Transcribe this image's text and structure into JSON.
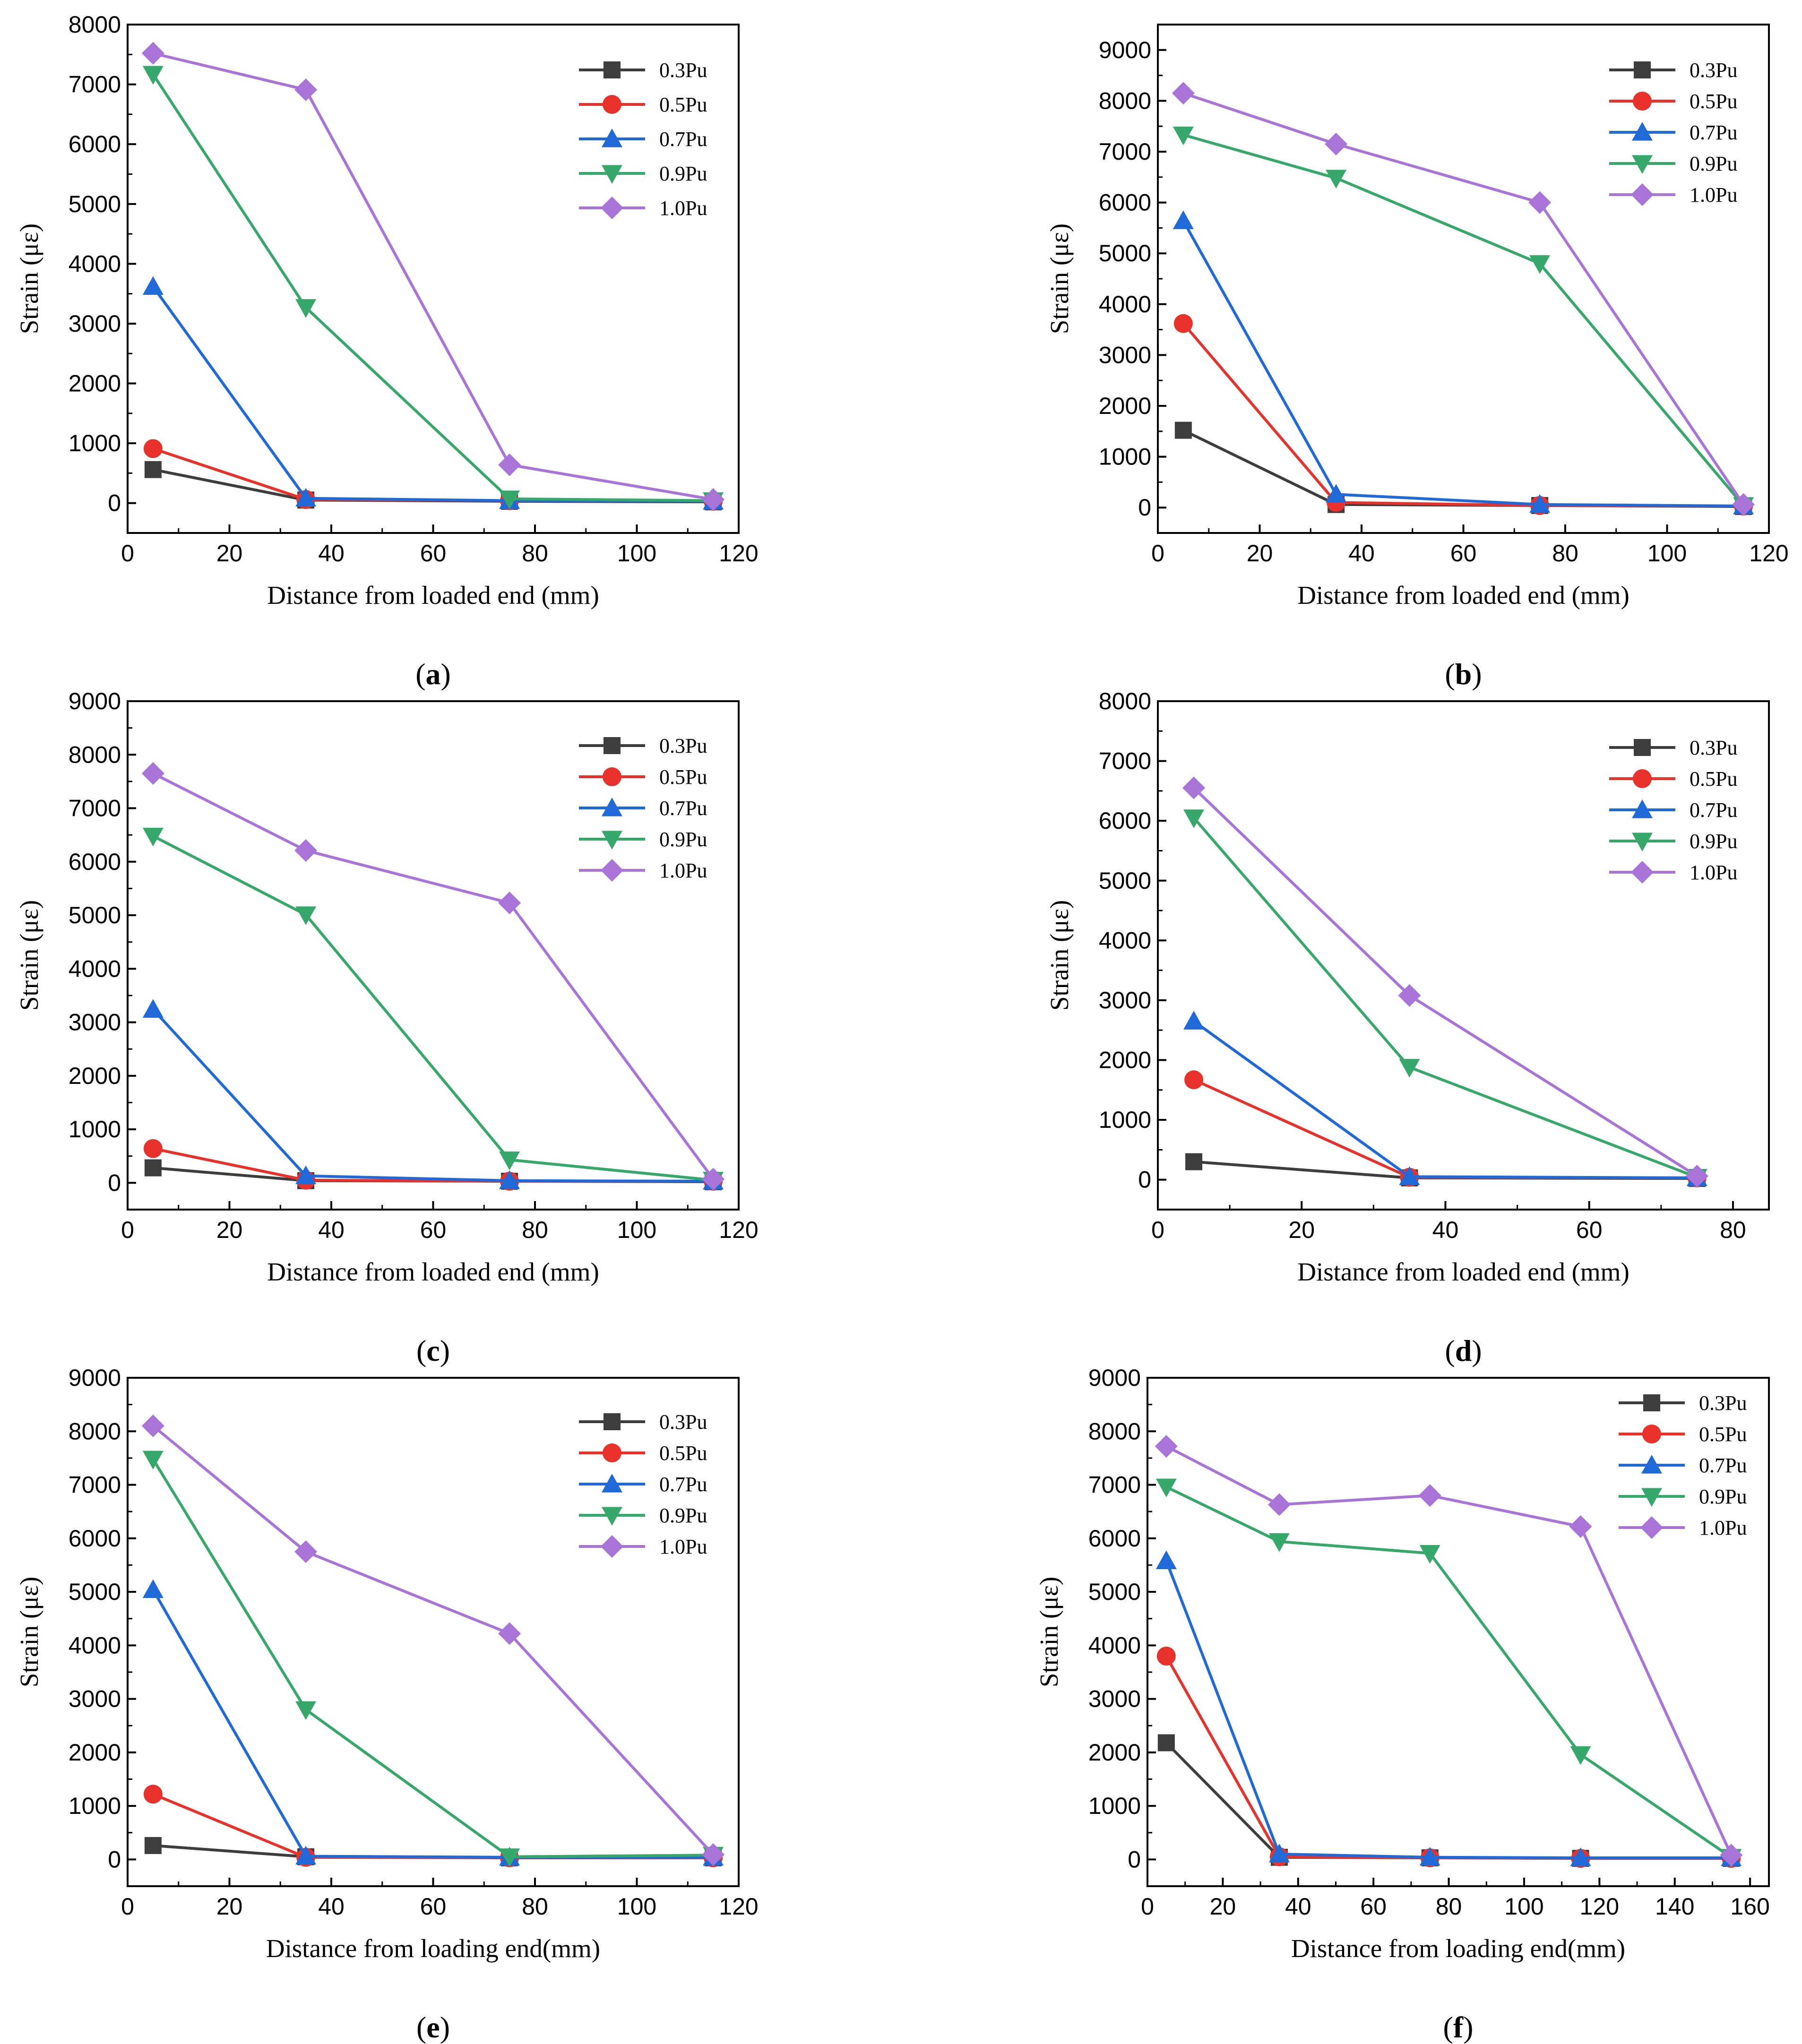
{
  "colors": {
    "0.3Pu": "#3d3d3d",
    "0.5Pu": "#e8312a",
    "0.7Pu": "#1f6ad8",
    "0.9Pu": "#35a86a",
    "1.0Pu": "#a874d8"
  },
  "markers": {
    "0.3Pu": "square",
    "0.5Pu": "circle",
    "0.7Pu": "triangle-up",
    "0.9Pu": "triangle-down",
    "1.0Pu": "diamond"
  },
  "chart_data": [
    {
      "id": "a",
      "type": "line",
      "panel_label": "a",
      "xlabel": "Distance from loaded end (mm)",
      "ylabel": "Strain (με)",
      "xlim": [
        0,
        120
      ],
      "ylim": [
        -500,
        8000
      ],
      "xticks": [
        0,
        20,
        40,
        60,
        80,
        100,
        120
      ],
      "yticks": [
        0,
        1000,
        2000,
        3000,
        4000,
        5000,
        6000,
        7000,
        8000
      ],
      "legend_position": "top-right",
      "x": [
        5,
        35,
        75,
        115
      ],
      "series": [
        {
          "name": "0.3Pu",
          "values": [
            560,
            50,
            30,
            20
          ]
        },
        {
          "name": "0.5Pu",
          "values": [
            910,
            60,
            40,
            30
          ]
        },
        {
          "name": "0.7Pu",
          "values": [
            3620,
            80,
            40,
            30
          ]
        },
        {
          "name": "0.9Pu",
          "values": [
            7170,
            3270,
            70,
            40
          ]
        },
        {
          "name": "1.0Pu",
          "values": [
            7520,
            6910,
            640,
            60
          ]
        }
      ]
    },
    {
      "id": "b",
      "type": "line",
      "panel_label": "b",
      "xlabel": "Distance from loaded end (mm)",
      "ylabel": "Strain (με)",
      "xlim": [
        0,
        120
      ],
      "ylim": [
        -500,
        9500
      ],
      "xticks": [
        0,
        20,
        40,
        60,
        80,
        100,
        120
      ],
      "yticks": [
        0,
        1000,
        2000,
        3000,
        4000,
        5000,
        6000,
        7000,
        8000,
        9000
      ],
      "legend_position": "top-right",
      "x": [
        5,
        35,
        75,
        115
      ],
      "series": [
        {
          "name": "0.3Pu",
          "values": [
            1520,
            60,
            40,
            20
          ]
        },
        {
          "name": "0.5Pu",
          "values": [
            3620,
            100,
            40,
            30
          ]
        },
        {
          "name": "0.7Pu",
          "values": [
            5640,
            260,
            60,
            30
          ]
        },
        {
          "name": "0.9Pu",
          "values": [
            7330,
            6480,
            4800,
            40
          ]
        },
        {
          "name": "1.0Pu",
          "values": [
            8150,
            7150,
            6000,
            60
          ]
        }
      ]
    },
    {
      "id": "c",
      "type": "line",
      "panel_label": "c",
      "xlabel": "Distance from loaded end (mm)",
      "ylabel": "Strain (με)",
      "xlim": [
        0,
        120
      ],
      "ylim": [
        -500,
        9000
      ],
      "xticks": [
        0,
        20,
        40,
        60,
        80,
        100,
        120
      ],
      "yticks": [
        0,
        1000,
        2000,
        3000,
        4000,
        5000,
        6000,
        7000,
        8000,
        9000
      ],
      "legend_position": "top-right",
      "x": [
        5,
        35,
        75,
        115
      ],
      "series": [
        {
          "name": "0.3Pu",
          "values": [
            280,
            40,
            30,
            20
          ]
        },
        {
          "name": "0.5Pu",
          "values": [
            640,
            50,
            30,
            30
          ]
        },
        {
          "name": "0.7Pu",
          "values": [
            3240,
            130,
            40,
            30
          ]
        },
        {
          "name": "0.9Pu",
          "values": [
            6480,
            5010,
            430,
            50
          ]
        },
        {
          "name": "1.0Pu",
          "values": [
            7650,
            6210,
            5230,
            70
          ]
        }
      ]
    },
    {
      "id": "d",
      "type": "line",
      "panel_label": "d",
      "xlabel": "Distance from loaded end (mm)",
      "ylabel": "Strain (με)",
      "xlim": [
        0,
        85
      ],
      "ylim": [
        -500,
        8000
      ],
      "xticks": [
        0,
        20,
        40,
        60,
        80
      ],
      "yticks": [
        0,
        1000,
        2000,
        3000,
        4000,
        5000,
        6000,
        7000,
        8000
      ],
      "legend_position": "top-right",
      "x": [
        5,
        35,
        75
      ],
      "series": [
        {
          "name": "0.3Pu",
          "values": [
            300,
            30,
            20
          ]
        },
        {
          "name": "0.5Pu",
          "values": [
            1670,
            40,
            30
          ]
        },
        {
          "name": "0.7Pu",
          "values": [
            2650,
            50,
            30
          ]
        },
        {
          "name": "0.9Pu",
          "values": [
            6050,
            1880,
            40
          ]
        },
        {
          "name": "1.0Pu",
          "values": [
            6550,
            3080,
            60
          ]
        }
      ]
    },
    {
      "id": "e",
      "type": "line",
      "panel_label": "e",
      "xlabel": "Distance from loading end(mm)",
      "ylabel": "Strain (με)",
      "xlim": [
        0,
        120
      ],
      "ylim": [
        -500,
        9000
      ],
      "xticks": [
        0,
        20,
        40,
        60,
        80,
        100,
        120
      ],
      "yticks": [
        0,
        1000,
        2000,
        3000,
        4000,
        5000,
        6000,
        7000,
        8000,
        9000
      ],
      "legend_position": "top-right",
      "x": [
        5,
        35,
        75,
        115
      ],
      "series": [
        {
          "name": "0.3Pu",
          "values": [
            260,
            50,
            30,
            30
          ]
        },
        {
          "name": "0.5Pu",
          "values": [
            1220,
            40,
            30,
            30
          ]
        },
        {
          "name": "0.7Pu",
          "values": [
            5040,
            60,
            40,
            40
          ]
        },
        {
          "name": "0.9Pu",
          "values": [
            7480,
            2800,
            50,
            80
          ]
        },
        {
          "name": "1.0Pu",
          "values": [
            8100,
            5750,
            4220,
            90
          ]
        }
      ]
    },
    {
      "id": "f",
      "type": "line",
      "panel_label": "f",
      "xlabel": "Distance from loading end(mm)",
      "ylabel": "Strain (με)",
      "xlim": [
        0,
        165
      ],
      "ylim": [
        -500,
        9000
      ],
      "xticks": [
        0,
        20,
        40,
        60,
        80,
        100,
        120,
        140,
        160
      ],
      "yticks": [
        0,
        1000,
        2000,
        3000,
        4000,
        5000,
        6000,
        7000,
        8000,
        9000
      ],
      "legend_position": "top-right",
      "x": [
        5,
        35,
        75,
        115,
        155
      ],
      "series": [
        {
          "name": "0.3Pu",
          "values": [
            2180,
            40,
            30,
            20,
            20
          ]
        },
        {
          "name": "0.5Pu",
          "values": [
            3800,
            50,
            30,
            20,
            20
          ]
        },
        {
          "name": "0.7Pu",
          "values": [
            5580,
            100,
            40,
            30,
            30
          ]
        },
        {
          "name": "0.9Pu",
          "values": [
            6960,
            5940,
            5720,
            1960,
            40
          ]
        },
        {
          "name": "1.0Pu",
          "values": [
            7720,
            6630,
            6800,
            6220,
            80
          ]
        }
      ]
    }
  ]
}
